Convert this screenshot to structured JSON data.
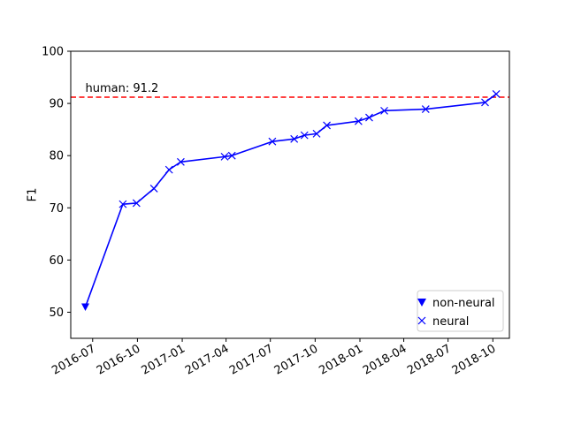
{
  "chart_data": {
    "type": "line",
    "title": "",
    "xlabel": "",
    "ylabel": "F1",
    "x_axis_kind": "date",
    "xlim": [
      "2016-05-17",
      "2018-11-04"
    ],
    "ylim": [
      45,
      100
    ],
    "y_ticks": [
      50,
      60,
      70,
      80,
      90,
      100
    ],
    "x_ticks": [
      {
        "date": "2016-07-01",
        "label": "2016-07"
      },
      {
        "date": "2016-10-01",
        "label": "2016-10"
      },
      {
        "date": "2017-01-01",
        "label": "2017-01"
      },
      {
        "date": "2017-04-01",
        "label": "2017-04"
      },
      {
        "date": "2017-07-01",
        "label": "2017-07"
      },
      {
        "date": "2017-10-01",
        "label": "2017-10"
      },
      {
        "date": "2018-01-01",
        "label": "2018-01"
      },
      {
        "date": "2018-04-01",
        "label": "2018-04"
      },
      {
        "date": "2018-07-01",
        "label": "2018-07"
      },
      {
        "date": "2018-10-01",
        "label": "2018-10"
      }
    ],
    "line_color": "#0000ff",
    "series": [
      {
        "name": "non-neural",
        "marker": "triangle-down",
        "color": "#0000ff",
        "points": [
          {
            "x": "2016-06-16",
            "y": 51.0
          }
        ]
      },
      {
        "name": "neural",
        "marker": "x",
        "color": "#0000ff",
        "points": [
          {
            "x": "2016-09-01",
            "y": 70.7
          },
          {
            "x": "2016-09-29",
            "y": 70.9
          },
          {
            "x": "2016-11-04",
            "y": 73.7
          },
          {
            "x": "2016-12-05",
            "y": 77.3
          },
          {
            "x": "2016-12-29",
            "y": 78.8
          },
          {
            "x": "2017-03-29",
            "y": 79.8
          },
          {
            "x": "2017-04-13",
            "y": 80.0
          },
          {
            "x": "2017-07-05",
            "y": 82.7
          },
          {
            "x": "2017-08-19",
            "y": 83.2
          },
          {
            "x": "2017-09-09",
            "y": 83.9
          },
          {
            "x": "2017-10-04",
            "y": 84.2
          },
          {
            "x": "2017-10-25",
            "y": 85.8
          },
          {
            "x": "2017-12-29",
            "y": 86.6
          },
          {
            "x": "2018-01-20",
            "y": 87.3
          },
          {
            "x": "2018-02-20",
            "y": 88.6
          },
          {
            "x": "2018-05-16",
            "y": 88.9
          },
          {
            "x": "2018-09-15",
            "y": 90.2
          },
          {
            "x": "2018-10-08",
            "y": 91.8
          }
        ]
      }
    ],
    "reference_line": {
      "y": 91.2,
      "label": "human: 91.2",
      "color": "#ff0000",
      "style": "dashed"
    },
    "grid": false,
    "legend": {
      "position": "bottom-right",
      "entries": [
        "non-neural",
        "neural"
      ]
    }
  }
}
